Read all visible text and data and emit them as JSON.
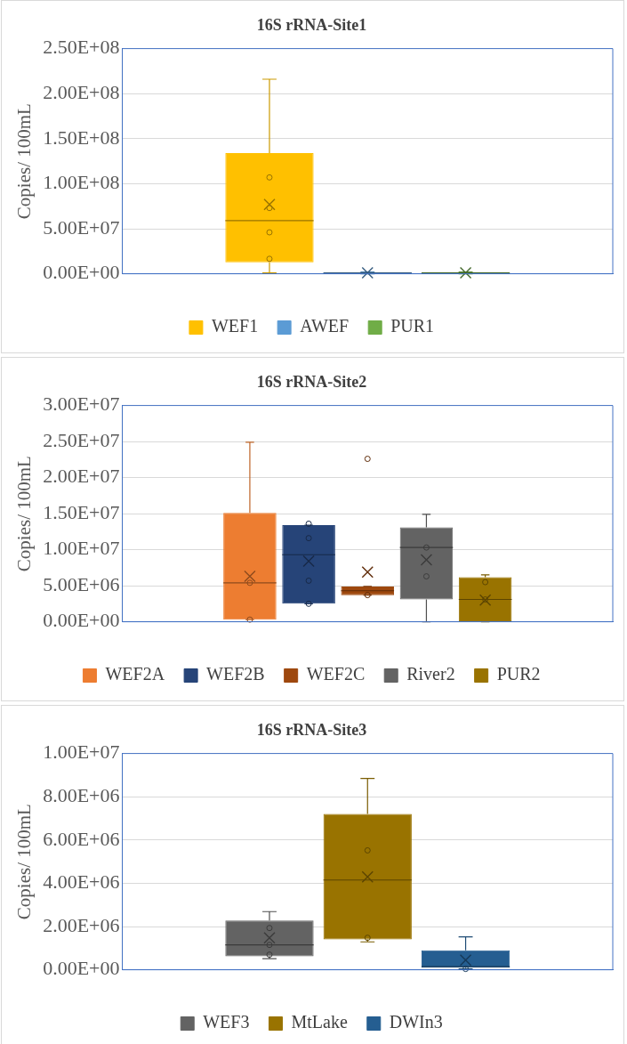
{
  "chart_data": [
    {
      "type": "box",
      "title": "16S rRNA-Site1",
      "ylabel": "Copies/ 100mL",
      "categories": [
        null
      ],
      "ylim": [
        0,
        250000000
      ],
      "yticks": [
        {
          "value": 0,
          "label": "0.00E+00"
        },
        {
          "value": 50000000,
          "label": "5.00E+07"
        },
        {
          "value": 100000000,
          "label": "1.00E+08"
        },
        {
          "value": 150000000,
          "label": "1.50E+08"
        },
        {
          "value": 200000000,
          "label": "2.00E+08"
        },
        {
          "value": 250000000,
          "label": "2.50E+08"
        }
      ],
      "grid": "y",
      "legend": "bottom",
      "series": [
        {
          "name": "WEF1",
          "color": "#ffc000",
          "boxes": [
            {
              "low": 1000000,
              "q1": 12600000,
              "median": 59000000,
              "q3": 134000000,
              "high": 216000000,
              "mean": 77000000,
              "outliers": [
                107000000,
                73000000,
                46000000,
                16600000
              ]
            }
          ]
        },
        {
          "name": "AWEF",
          "color": "#5b9bd5",
          "boxes": [
            {
              "low": 0,
              "q1": 500000,
              "median": 1000000,
              "q3": 1500000,
              "high": 2000000,
              "mean": 1000000
            }
          ]
        },
        {
          "name": "PUR1",
          "color": "#70ad47",
          "boxes": [
            {
              "low": 0,
              "q1": 500000,
              "median": 1000000,
              "q3": 1500000,
              "high": 2000000,
              "mean": 1000000
            }
          ]
        }
      ]
    },
    {
      "type": "box",
      "title": "16S rRNA-Site2",
      "ylabel": "Copies/ 100mL",
      "categories": [
        null
      ],
      "ylim": [
        0,
        30000000
      ],
      "yticks": [
        {
          "value": 0,
          "label": "0.00E+00"
        },
        {
          "value": 5000000,
          "label": "5.00E+06"
        },
        {
          "value": 10000000,
          "label": "1.00E+07"
        },
        {
          "value": 15000000,
          "label": "1.50E+07"
        },
        {
          "value": 20000000,
          "label": "2.00E+07"
        },
        {
          "value": 25000000,
          "label": "2.50E+07"
        },
        {
          "value": 30000000,
          "label": "3.00E+07"
        }
      ],
      "grid": "y",
      "legend": "bottom",
      "series": [
        {
          "name": "WEF2A",
          "color": "#ed7d31",
          "boxes": [
            {
              "low": 300000,
              "q1": 300000,
              "median": 5400000,
              "q3": 15100000,
              "high": 24900000,
              "mean": 6300000,
              "outliers": [
                5400000,
                300000
              ]
            }
          ]
        },
        {
          "name": "WEF2B",
          "color": "#264478",
          "boxes": [
            {
              "low": 2500000,
              "q1": 2500000,
              "median": 9300000,
              "q3": 13400000,
              "high": 13400000,
              "mean": 8400000,
              "outliers": [
                13600000,
                11600000,
                5700000,
                2500000
              ]
            }
          ]
        },
        {
          "name": "WEF2C",
          "color": "#9e480e",
          "boxes": [
            {
              "low": 3700000,
              "q1": 3700000,
              "median": 4300000,
              "q3": 4900000,
              "high": 4900000,
              "mean": 6900000,
              "outliers": [
                22600000,
                3700000
              ]
            }
          ]
        },
        {
          "name": "River2",
          "color": "#636363",
          "boxes": [
            {
              "low": 0,
              "q1": 3100000,
              "median": 10300000,
              "q3": 13100000,
              "high": 14900000,
              "mean": 8600000,
              "outliers": [
                10300000,
                6300000
              ]
            }
          ]
        },
        {
          "name": "PUR2",
          "color": "#997300",
          "boxes": [
            {
              "low": 0,
              "q1": 0,
              "median": 3100000,
              "q3": 6200000,
              "high": 6500000,
              "mean": 3000000,
              "outliers": [
                5500000,
                3100000
              ]
            }
          ]
        }
      ]
    },
    {
      "type": "box",
      "title": "16S rRNA-Site3",
      "ylabel": "Copies/ 100mL",
      "categories": [
        null
      ],
      "ylim": [
        0,
        10000000
      ],
      "yticks": [
        {
          "value": 0,
          "label": "0.00E+00"
        },
        {
          "value": 2000000,
          "label": "2.00E+06"
        },
        {
          "value": 4000000,
          "label": "4.00E+06"
        },
        {
          "value": 6000000,
          "label": "6.00E+06"
        },
        {
          "value": 8000000,
          "label": "8.00E+06"
        },
        {
          "value": 10000000,
          "label": "1.00E+07"
        }
      ],
      "grid": "y",
      "legend": "bottom",
      "series": [
        {
          "name": "WEF3",
          "color": "#636363",
          "boxes": [
            {
              "low": 510000,
              "q1": 620000,
              "median": 1150000,
              "q3": 2280000,
              "high": 2690000,
              "mean": 1480000,
              "outliers": [
                1930000,
                1150000,
                700000
              ]
            }
          ]
        },
        {
          "name": "MtLake",
          "color": "#997300",
          "boxes": [
            {
              "low": 1290000,
              "q1": 1400000,
              "median": 4150000,
              "q3": 7210000,
              "high": 8850000,
              "mean": 4290000,
              "outliers": [
                5520000,
                1480000
              ]
            }
          ]
        },
        {
          "name": "DWIn3",
          "color": "#255e91",
          "boxes": [
            {
              "low": 40000,
              "q1": 100000,
              "median": 140000,
              "q3": 900000,
              "high": 1520000,
              "mean": 450000,
              "outliers": [
                40000
              ]
            }
          ]
        }
      ]
    }
  ]
}
